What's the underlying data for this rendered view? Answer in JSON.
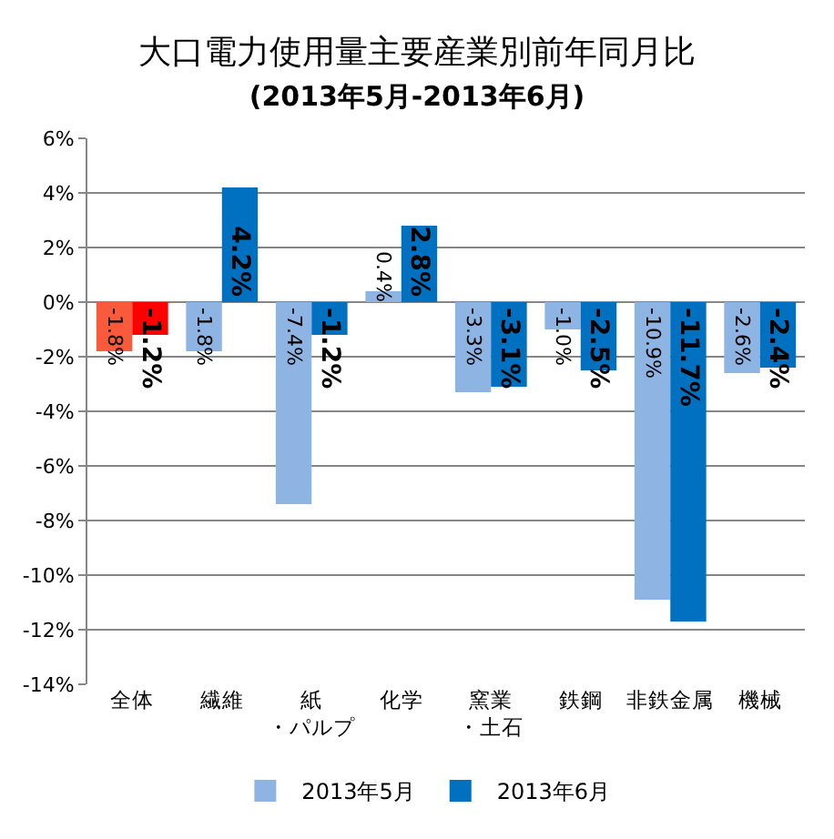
{
  "chart_data": {
    "type": "bar",
    "title": "大口電力使用量主要産業別前年同月比",
    "subtitle": "(2013年5月-2013年6月)",
    "categories": [
      "全体",
      "繊維",
      "紙・パルプ",
      "化学",
      "窯業・土石",
      "鉄鋼",
      "非鉄金属",
      "機械"
    ],
    "series": [
      {
        "name": "2013年5月",
        "color": "#8db4e2",
        "colors": [
          "#f95a3c",
          "#8db4e2",
          "#8db4e2",
          "#8db4e2",
          "#8db4e2",
          "#8db4e2",
          "#8db4e2",
          "#8db4e2"
        ],
        "values": [
          -1.8,
          -1.8,
          -7.4,
          0.4,
          -3.3,
          -1.0,
          -10.9,
          -2.6
        ],
        "value_labels": [
          "-1.8%",
          "-1.8%",
          "-7.4%",
          "0.4%",
          "-3.3%",
          "-1.0%",
          "-10.9%",
          "-2.6%"
        ]
      },
      {
        "name": "2013年6月",
        "color": "#0070c0",
        "colors": [
          "#ff0000",
          "#0070c0",
          "#0070c0",
          "#0070c0",
          "#0070c0",
          "#0070c0",
          "#0070c0",
          "#0070c0"
        ],
        "values": [
          -1.2,
          4.2,
          -1.2,
          2.8,
          -3.1,
          -2.5,
          -11.7,
          -2.4
        ],
        "value_labels": [
          "-1.2%",
          "4.2%",
          "-1.2%",
          "2.8%",
          "-3.1%",
          "-2.5%",
          "-11.7%",
          "-2.4%"
        ]
      }
    ],
    "ylim": [
      -14,
      6
    ],
    "yticks": [
      {
        "value": -14,
        "label": "-14%"
      },
      {
        "value": -12,
        "label": "-12%"
      },
      {
        "value": -10,
        "label": "-10%"
      },
      {
        "value": -8,
        "label": "-8%"
      },
      {
        "value": -6,
        "label": "-6%"
      },
      {
        "value": -4,
        "label": "-4%"
      },
      {
        "value": -2,
        "label": "-2%"
      },
      {
        "value": 0,
        "label": "0%"
      },
      {
        "value": 2,
        "label": "2%"
      },
      {
        "value": 4,
        "label": "4%"
      },
      {
        "value": 6,
        "label": "6%"
      }
    ],
    "grid": "y",
    "legend": "bottom"
  }
}
